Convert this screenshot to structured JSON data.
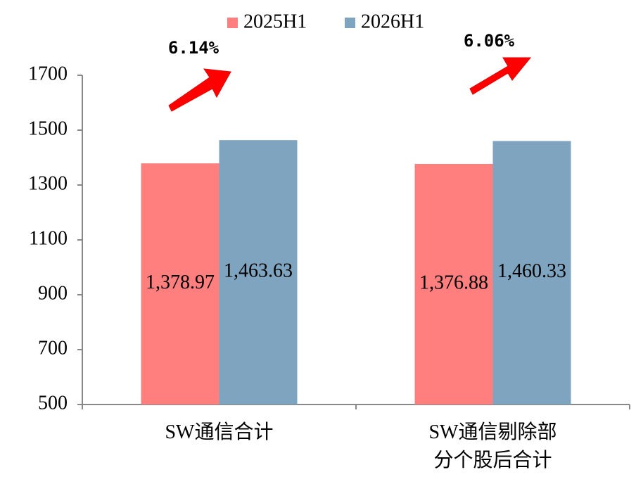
{
  "chart_data": {
    "type": "bar",
    "categories": [
      "SW通信合计",
      "SW通信剔除部分个股后合计"
    ],
    "series": [
      {
        "name": "2025H1",
        "color": "#ff7f7f",
        "values": [
          1378.97,
          1376.88
        ],
        "value_labels": [
          "1,378.97",
          "1,376.88"
        ]
      },
      {
        "name": "2026H1",
        "color": "#7fa4bf",
        "values": [
          1463.63,
          1460.33
        ],
        "value_labels": [
          "1,463.63",
          "1,460.33"
        ]
      }
    ],
    "annotations": [
      "6.14%",
      "6.06%"
    ],
    "ylim": [
      500,
      1700
    ],
    "yticks": [
      500,
      700,
      900,
      1100,
      1300,
      1500,
      1700
    ],
    "legend": "top"
  }
}
